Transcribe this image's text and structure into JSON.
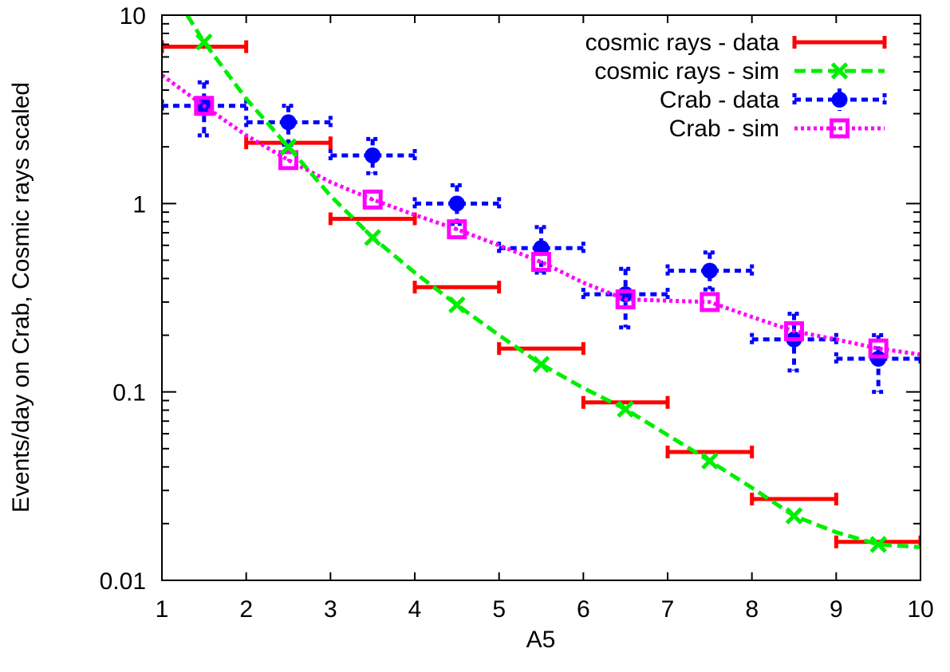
{
  "chart_data": {
    "type": "line",
    "xlabel": "A5",
    "ylabel": "Events/day on Crab, Cosmic rays scaled",
    "xlim": [
      1,
      10
    ],
    "ylim": [
      0.01,
      10
    ],
    "yscale": "log",
    "x_ticks": [
      "1",
      "2",
      "3",
      "4",
      "5",
      "6",
      "7",
      "8",
      "9",
      "10"
    ],
    "y_ticks": [
      "0.01",
      "0.1",
      "1",
      "10"
    ],
    "grid": false,
    "legend_position": "top-right",
    "series": [
      {
        "name": "cosmic rays - data",
        "kind": "xerror",
        "color": "#ff0000",
        "style": "solid",
        "points": [
          {
            "x": 1.5,
            "y": 6.8,
            "xerr": 0.5
          },
          {
            "x": 2.5,
            "y": 2.1,
            "xerr": 0.5
          },
          {
            "x": 3.5,
            "y": 0.83,
            "xerr": 0.5
          },
          {
            "x": 4.5,
            "y": 0.36,
            "xerr": 0.5
          },
          {
            "x": 5.5,
            "y": 0.17,
            "xerr": 0.5
          },
          {
            "x": 6.5,
            "y": 0.088,
            "xerr": 0.5
          },
          {
            "x": 7.5,
            "y": 0.048,
            "xerr": 0.5
          },
          {
            "x": 8.5,
            "y": 0.027,
            "xerr": 0.5
          },
          {
            "x": 9.5,
            "y": 0.016,
            "xerr": 0.5
          }
        ]
      },
      {
        "name": "cosmic rays - sim",
        "kind": "line-points",
        "color": "#00ee00",
        "style": "dashed",
        "marker": "x",
        "curve": [
          [
            1.3,
            10
          ],
          [
            1.5,
            7.2
          ],
          [
            2.0,
            3.6
          ],
          [
            2.5,
            2.0
          ],
          [
            3.0,
            1.1
          ],
          [
            3.5,
            0.66
          ],
          [
            4.0,
            0.43
          ],
          [
            4.5,
            0.29
          ],
          [
            5.0,
            0.2
          ],
          [
            5.5,
            0.14
          ],
          [
            6.0,
            0.105
          ],
          [
            6.5,
            0.081
          ],
          [
            7.0,
            0.059
          ],
          [
            7.5,
            0.043
          ],
          [
            8.0,
            0.031
          ],
          [
            8.5,
            0.022
          ],
          [
            9.0,
            0.018
          ],
          [
            9.5,
            0.0155
          ],
          [
            10.0,
            0.015
          ]
        ],
        "points": [
          {
            "x": 1.5,
            "y": 7.2
          },
          {
            "x": 2.5,
            "y": 2.0
          },
          {
            "x": 3.5,
            "y": 0.66
          },
          {
            "x": 4.5,
            "y": 0.29
          },
          {
            "x": 5.5,
            "y": 0.14
          },
          {
            "x": 6.5,
            "y": 0.081
          },
          {
            "x": 7.5,
            "y": 0.043
          },
          {
            "x": 8.5,
            "y": 0.022
          },
          {
            "x": 9.5,
            "y": 0.0155
          }
        ]
      },
      {
        "name": "Crab - data",
        "kind": "xyerror",
        "color": "#0000ff",
        "style": "dotted",
        "marker": "filled-circle",
        "points": [
          {
            "x": 1.5,
            "y": 3.3,
            "xerr": 0.5,
            "ylo": 2.3,
            "yhi": 4.4
          },
          {
            "x": 2.5,
            "y": 2.7,
            "xerr": 0.5,
            "ylo": 2.05,
            "yhi": 3.3
          },
          {
            "x": 3.5,
            "y": 1.8,
            "xerr": 0.5,
            "ylo": 1.45,
            "yhi": 2.2
          },
          {
            "x": 4.5,
            "y": 1.0,
            "xerr": 0.5,
            "ylo": 0.78,
            "yhi": 1.25
          },
          {
            "x": 5.5,
            "y": 0.58,
            "xerr": 0.5,
            "ylo": 0.43,
            "yhi": 0.75
          },
          {
            "x": 6.5,
            "y": 0.33,
            "xerr": 0.5,
            "ylo": 0.22,
            "yhi": 0.45
          },
          {
            "x": 7.5,
            "y": 0.44,
            "xerr": 0.5,
            "ylo": 0.35,
            "yhi": 0.55
          },
          {
            "x": 8.5,
            "y": 0.19,
            "xerr": 0.5,
            "ylo": 0.13,
            "yhi": 0.26
          },
          {
            "x": 9.5,
            "y": 0.15,
            "xerr": 0.5,
            "ylo": 0.1,
            "yhi": 0.2
          }
        ]
      },
      {
        "name": "Crab - sim",
        "kind": "line-points",
        "color": "#ff00ff",
        "style": "dotted",
        "marker": "square",
        "curve": [
          [
            1.0,
            4.8
          ],
          [
            1.5,
            3.3
          ],
          [
            2.0,
            2.3
          ],
          [
            2.5,
            1.7
          ],
          [
            3.0,
            1.3
          ],
          [
            3.5,
            1.05
          ],
          [
            4.0,
            0.87
          ],
          [
            4.5,
            0.73
          ],
          [
            5.0,
            0.6
          ],
          [
            5.5,
            0.49
          ],
          [
            6.0,
            0.38
          ],
          [
            6.5,
            0.31
          ],
          [
            7.0,
            0.305
          ],
          [
            7.5,
            0.3
          ],
          [
            8.0,
            0.25
          ],
          [
            8.5,
            0.21
          ],
          [
            9.0,
            0.19
          ],
          [
            9.5,
            0.17
          ],
          [
            10.0,
            0.158
          ]
        ],
        "points": [
          {
            "x": 1.5,
            "y": 3.3
          },
          {
            "x": 2.5,
            "y": 1.7
          },
          {
            "x": 3.5,
            "y": 1.05
          },
          {
            "x": 4.5,
            "y": 0.73
          },
          {
            "x": 5.5,
            "y": 0.49
          },
          {
            "x": 6.5,
            "y": 0.31
          },
          {
            "x": 7.5,
            "y": 0.3
          },
          {
            "x": 8.5,
            "y": 0.21
          },
          {
            "x": 9.5,
            "y": 0.17
          }
        ]
      }
    ]
  }
}
